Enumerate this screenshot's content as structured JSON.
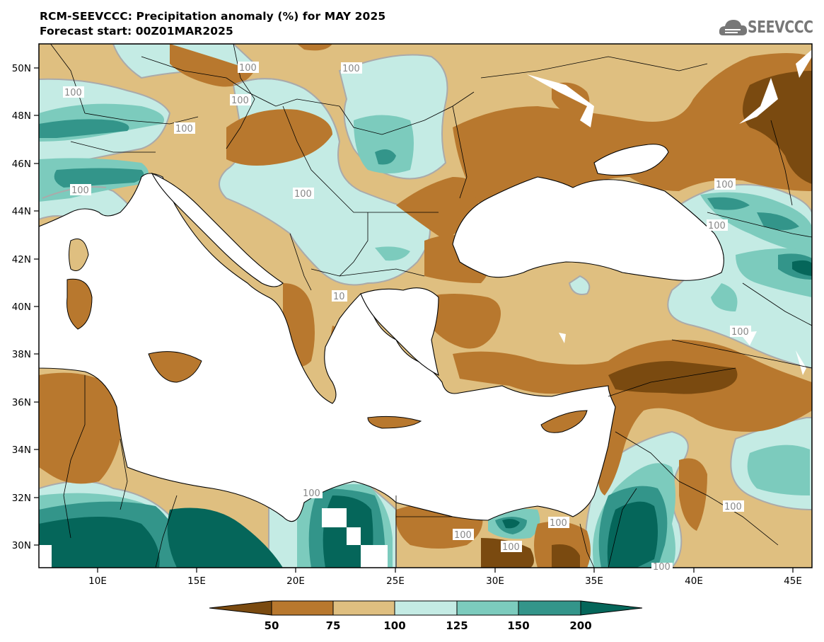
{
  "title": {
    "line1": "RCM-SEEVCCC: Precipitation anomaly (%) for MAY 2025",
    "line2": "Forecast start: 00Z01MAR2025"
  },
  "logo": {
    "text": "SEEVCCC",
    "icon": "cloud-icon"
  },
  "axes": {
    "lat_labels": [
      "50N",
      "48N",
      "46N",
      "44N",
      "42N",
      "40N",
      "38N",
      "36N",
      "34N",
      "32N",
      "30N"
    ],
    "lon_labels": [
      "10E",
      "15E",
      "20E",
      "25E",
      "30E",
      "35E",
      "40E",
      "45E"
    ]
  },
  "colors": {
    "below_50": "#7a4a10",
    "50_75": "#b8782e",
    "75_100": "#dfbf80",
    "100_125": "#c4ebe4",
    "125_150": "#7ccbbd",
    "150_200": "#33958a",
    "above_200": "#05665a",
    "contour": "#aaaaaa"
  },
  "colorbar": {
    "labels": [
      "50",
      "75",
      "100",
      "125",
      "150",
      "200"
    ],
    "categories": [
      "<50",
      "50-75",
      "75-100",
      "100-125",
      "125-150",
      "150-200",
      ">200"
    ]
  },
  "contour_labels": [
    "100",
    "100",
    "100",
    "100",
    "100",
    "100",
    "100",
    "100",
    "100",
    "100",
    "10",
    "100",
    "100",
    "100",
    "100",
    "100",
    "100"
  ]
}
